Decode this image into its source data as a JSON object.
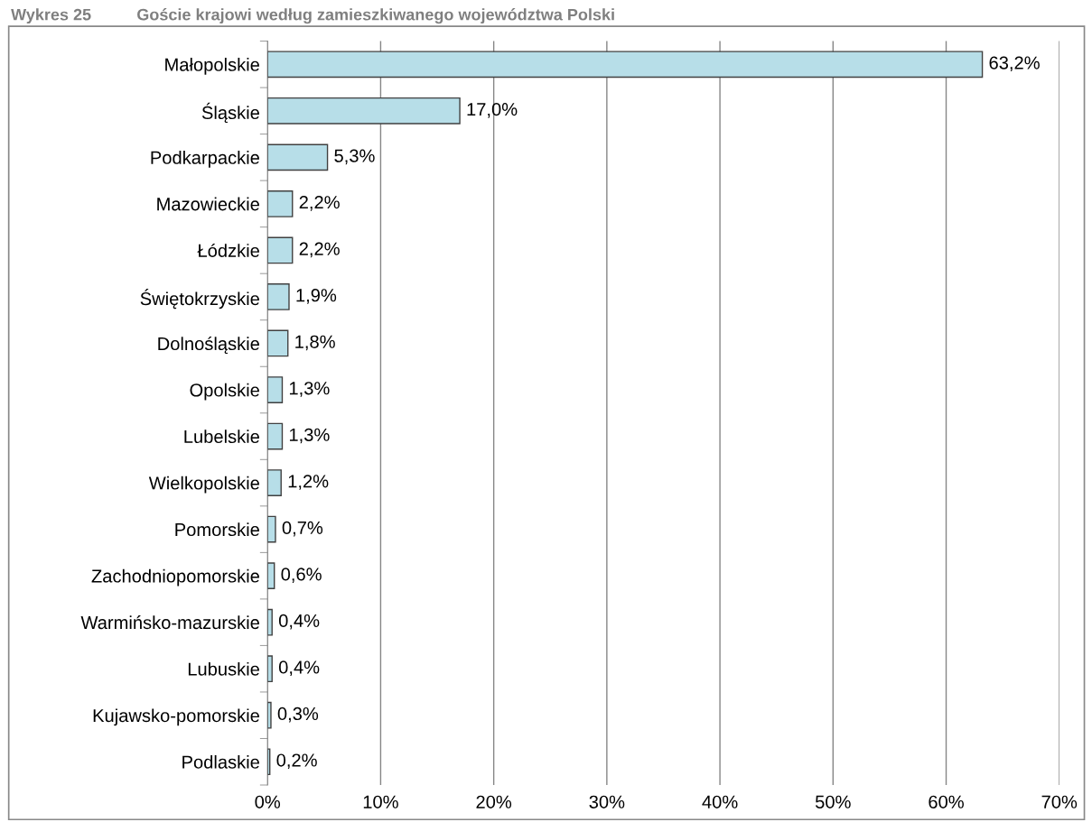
{
  "chart_data": {
    "type": "bar",
    "orientation": "horizontal",
    "title": "Wykres 25          Goście krajowi według zamieszkiwanego województwa Polski",
    "categories": [
      "Małopolskie",
      "Śląskie",
      "Podkarpackie",
      "Mazowieckie",
      "Łódzkie",
      "Świętokrzyskie",
      "Dolnośląskie",
      "Opolskie",
      "Lubelskie",
      "Wielkopolskie",
      "Pomorskie",
      "Zachodniopomorskie",
      "Warmińsko-mazurskie",
      "Lubuskie",
      "Kujawsko-pomorskie",
      "Podlaskie"
    ],
    "values": [
      63.2,
      17.0,
      5.3,
      2.2,
      2.2,
      1.9,
      1.8,
      1.3,
      1.3,
      1.2,
      0.7,
      0.6,
      0.4,
      0.4,
      0.3,
      0.2
    ],
    "value_labels": [
      "63,2%",
      "17,0%",
      "5,3%",
      "2,2%",
      "2,2%",
      "1,9%",
      "1,8%",
      "1,3%",
      "1,3%",
      "1,2%",
      "0,7%",
      "0,6%",
      "0,4%",
      "0,4%",
      "0,3%",
      "0,2%"
    ],
    "color": "#b7dee8",
    "xlim": [
      0,
      70
    ],
    "xticks": [
      {
        "value": 0,
        "label": "0%"
      },
      {
        "value": 10,
        "label": "10%"
      },
      {
        "value": 20,
        "label": "20%"
      },
      {
        "value": 30,
        "label": "30%"
      },
      {
        "value": 40,
        "label": "40%"
      },
      {
        "value": 50,
        "label": "50%"
      },
      {
        "value": 60,
        "label": "60%"
      },
      {
        "value": 70,
        "label": "70%"
      }
    ],
    "grid": "x",
    "legend": false
  }
}
